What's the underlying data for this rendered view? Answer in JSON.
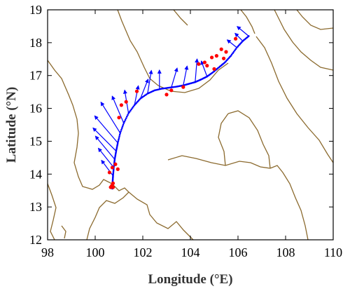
{
  "chart_data": {
    "type": "scatter",
    "title": "",
    "xlabel": "Longitude (°E)",
    "ylabel": "Latitude (°N)",
    "xlim": [
      98,
      110
    ],
    "ylim": [
      12,
      19
    ],
    "xticks": [
      98,
      100,
      102,
      104,
      106,
      108,
      110
    ],
    "yticks": [
      12,
      13,
      14,
      15,
      16,
      17,
      18,
      19
    ],
    "grid": false,
    "legend": "none",
    "colors": {
      "track": "#0000ff",
      "arrows": "#0000ff",
      "points": "#ff0000",
      "coastline": "#8b6a2e",
      "frame": "#000000"
    },
    "series": [
      {
        "kind": "track",
        "x": [
          106.45,
          106.2,
          105.95,
          105.7,
          105.45,
          105.2,
          104.95,
          104.7,
          104.45,
          104.2,
          103.95,
          103.7,
          103.4,
          103.1,
          102.8,
          102.5,
          102.2,
          101.9,
          101.65,
          101.4,
          101.2,
          101.05,
          100.95,
          100.88,
          100.82,
          100.78,
          100.75,
          100.73,
          100.72,
          100.72
        ],
        "y": [
          18.2,
          18.05,
          17.85,
          17.6,
          17.4,
          17.25,
          17.1,
          16.97,
          16.88,
          16.8,
          16.75,
          16.7,
          16.66,
          16.63,
          16.6,
          16.55,
          16.45,
          16.3,
          16.1,
          15.85,
          15.55,
          15.25,
          14.95,
          14.7,
          14.45,
          14.2,
          13.95,
          13.75,
          13.6,
          13.55
        ]
      },
      {
        "kind": "red_points",
        "x": [
          105.9,
          105.5,
          105.3,
          105.1,
          104.9,
          104.6,
          104.35,
          105.4,
          105.0,
          104.7,
          103.7,
          103.2,
          103.0,
          101.75,
          101.3,
          101.1,
          101.0,
          100.95,
          100.85,
          100.75,
          100.65,
          100.6,
          100.75,
          100.7,
          100.72
        ],
        "y": [
          18.12,
          17.72,
          17.8,
          17.6,
          17.55,
          17.4,
          17.35,
          17.52,
          17.2,
          17.3,
          16.65,
          16.55,
          16.42,
          16.52,
          16.2,
          16.1,
          15.72,
          14.15,
          14.3,
          13.72,
          13.6,
          14.05,
          13.6,
          13.65,
          14.2
        ]
      },
      {
        "kind": "vectors",
        "x": [
          106.45,
          106.2,
          105.95,
          104.7,
          104.2,
          103.7,
          103.2,
          102.7,
          102.2,
          101.9,
          101.65,
          101.4,
          101.2,
          101.05,
          100.95,
          100.88,
          100.82,
          100.78,
          100.75
        ],
        "y": [
          18.2,
          18.05,
          17.85,
          16.97,
          16.8,
          16.7,
          16.64,
          16.58,
          16.45,
          16.3,
          16.1,
          15.85,
          15.55,
          15.25,
          14.95,
          14.7,
          14.45,
          14.2,
          13.95
        ],
        "u": [
          -0.3,
          -0.2,
          -0.25,
          -0.15,
          0.05,
          0.1,
          0.15,
          0.0,
          0.1,
          0.2,
          0.1,
          -0.1,
          -0.3,
          -0.5,
          -0.6,
          -0.6,
          -0.5,
          -0.4,
          -0.3
        ],
        "v": [
          0.25,
          0.2,
          0.2,
          0.4,
          0.6,
          0.5,
          0.5,
          0.5,
          0.6,
          0.5,
          0.5,
          0.6,
          0.7,
          0.8,
          0.7,
          0.6,
          0.6,
          0.5,
          0.4
        ]
      }
    ]
  }
}
